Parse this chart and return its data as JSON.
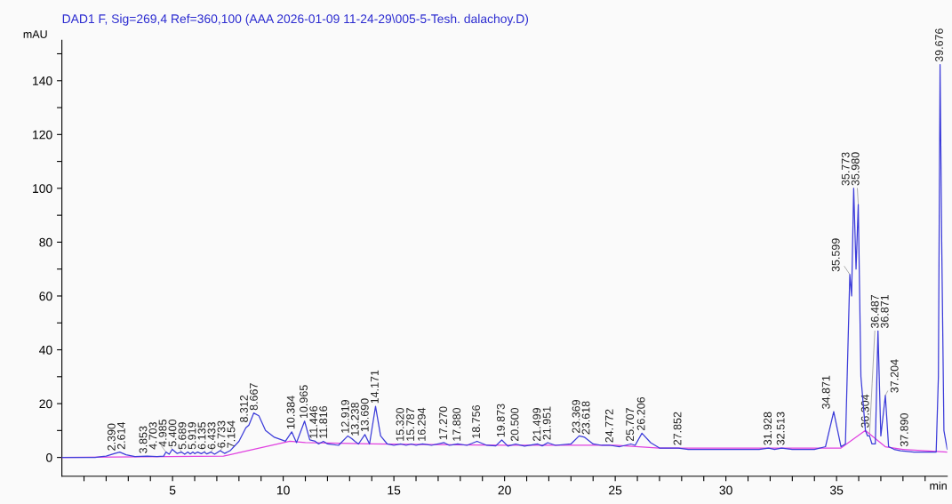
{
  "chart_data": {
    "type": "line",
    "title": "DAD1 F, Sig=269,4 Ref=360,100 (AAA 2026-01-09 11-24-29\\005-5-Tesh. dalachoy.D)",
    "xlabel": "min",
    "ylabel": "mAU",
    "xlim": [
      0,
      40
    ],
    "ylim": [
      -7,
      155
    ],
    "xticks": [
      {
        "value": 1,
        "label": null
      },
      {
        "value": 2,
        "label": null
      },
      {
        "value": 3,
        "label": null
      },
      {
        "value": 4,
        "label": null
      },
      5,
      {
        "value": 6,
        "label": null
      },
      {
        "value": 7,
        "label": null
      },
      {
        "value": 8,
        "label": null
      },
      {
        "value": 9,
        "label": null
      },
      10,
      {
        "value": 11,
        "label": null
      },
      {
        "value": 12,
        "label": null
      },
      {
        "value": 13,
        "label": null
      },
      {
        "value": 14,
        "label": null
      },
      15,
      {
        "value": 16,
        "label": null
      },
      {
        "value": 17,
        "label": null
      },
      {
        "value": 18,
        "label": null
      },
      {
        "value": 19,
        "label": null
      },
      20,
      {
        "value": 21,
        "label": null
      },
      {
        "value": 22,
        "label": null
      },
      {
        "value": 23,
        "label": null
      },
      {
        "value": 24,
        "label": null
      },
      25,
      {
        "value": 26,
        "label": null
      },
      {
        "value": 27,
        "label": null
      },
      {
        "value": 28,
        "label": null
      },
      {
        "value": 29,
        "label": null
      },
      30,
      {
        "value": 31,
        "label": null
      },
      {
        "value": 32,
        "label": null
      },
      {
        "value": 33,
        "label": null
      },
      {
        "value": 34,
        "label": null
      },
      35,
      {
        "value": 36,
        "label": null
      },
      {
        "value": 37,
        "label": null
      },
      {
        "value": 38,
        "label": null
      },
      {
        "value": 39,
        "label": null
      }
    ],
    "yticks": [
      0,
      {
        "value": 10,
        "label": null
      },
      20,
      {
        "value": 30,
        "label": null
      },
      40,
      {
        "value": 50,
        "label": null
      },
      60,
      {
        "value": 70,
        "label": null
      },
      80,
      {
        "value": 90,
        "label": null
      },
      100,
      {
        "value": 110,
        "label": null
      },
      120,
      {
        "value": 130,
        "label": null
      },
      140,
      {
        "value": 150,
        "label": null
      }
    ],
    "grid": false,
    "legend": false,
    "marker": "none",
    "line_style": "solid",
    "series": [
      {
        "color": "#3b3bd9",
        "x": [
          0,
          1.5,
          1.8,
          2.0,
          2.39,
          2.614,
          2.9,
          3.3,
          3.853,
          4.3,
          4.6,
          4.703,
          4.85,
          4.985,
          5.2,
          5.4,
          5.55,
          5.689,
          5.8,
          5.919,
          6.0,
          6.135,
          6.3,
          6.433,
          6.55,
          6.733,
          6.9,
          7.154,
          7.35,
          7.6,
          8.0,
          8.312,
          8.45,
          8.667,
          8.9,
          9.2,
          9.6,
          10.1,
          10.384,
          10.6,
          10.965,
          11.2,
          11.446,
          11.6,
          11.816,
          12.0,
          12.5,
          12.919,
          13.1,
          13.238,
          13.4,
          13.69,
          13.9,
          14.171,
          14.4,
          14.7,
          15.0,
          15.32,
          15.55,
          15.787,
          16.0,
          16.294,
          16.7,
          17.27,
          17.5,
          17.88,
          18.3,
          18.756,
          19.2,
          19.6,
          19.873,
          20.15,
          20.5,
          20.9,
          21.499,
          21.7,
          21.951,
          22.3,
          23.0,
          23.369,
          23.618,
          24.0,
          24.4,
          24.772,
          25.2,
          25.707,
          25.9,
          26.206,
          26.6,
          27.0,
          27.852,
          28.3,
          30,
          31.5,
          31.928,
          32.2,
          32.513,
          33.0,
          34.0,
          34.5,
          34.871,
          35.2,
          35.4,
          35.599,
          35.68,
          35.773,
          35.88,
          35.98,
          36.1,
          36.304,
          36.4,
          36.487,
          36.6,
          36.75,
          36.871,
          37.0,
          37.204,
          37.35,
          37.6,
          37.89,
          38.5,
          39.5,
          39.6,
          39.676,
          39.75,
          39.85,
          40
        ],
        "values": [
          0,
          0,
          0.3,
          0.5,
          1.5,
          2,
          1,
          0.3,
          0.5,
          0.3,
          0.5,
          2,
          1.2,
          3,
          1.5,
          2,
          1.2,
          2,
          1.3,
          2,
          1.4,
          2,
          1.4,
          2,
          1.3,
          2,
          1.2,
          2.5,
          1.5,
          2.5,
          6,
          11,
          12,
          16.5,
          15.5,
          10,
          7.5,
          6,
          9.5,
          5.5,
          13.5,
          6.5,
          6,
          5,
          6,
          5,
          4.5,
          8,
          7,
          6,
          5,
          8.5,
          5,
          19,
          8,
          5,
          4.5,
          5,
          4.5,
          5,
          4.5,
          5,
          4.5,
          5.5,
          4.5,
          5,
          4.5,
          6,
          4.5,
          4.3,
          6.5,
          4.2,
          5,
          4.2,
          5,
          4.3,
          5.5,
          4.5,
          5,
          8,
          7.5,
          5,
          4.5,
          4.5,
          4,
          5,
          4.5,
          9,
          5.5,
          3.5,
          3.5,
          3,
          3,
          3,
          3.5,
          3,
          3.5,
          3,
          3,
          4,
          17,
          4,
          5,
          68,
          60,
          100,
          70,
          94,
          30,
          10,
          8,
          8,
          5,
          5,
          47,
          8,
          23,
          4,
          3,
          2.5,
          2,
          2,
          30,
          146,
          80,
          10,
          3
        ]
      },
      {
        "color": "#e040e0",
        "x": [
          0,
          7.3,
          10.3,
          11,
          14,
          20,
          25,
          27,
          35.2,
          36.3,
          37.2,
          38,
          40
        ],
        "values": [
          0,
          0.5,
          6,
          5.5,
          5,
          4.5,
          4.5,
          3.5,
          3.5,
          10,
          4,
          3,
          2
        ]
      }
    ],
    "annotations": [
      {
        "text": "2.390",
        "x": 2.39,
        "y": 1.5
      },
      {
        "text": "2.614",
        "x": 2.614,
        "y": 2
      },
      {
        "text": "3.853",
        "x": 3.853,
        "y": 0.5
      },
      {
        "text": "4.703",
        "x": 4.703,
        "y": 2
      },
      {
        "text": "4.985",
        "x": 4.985,
        "y": 3
      },
      {
        "text": "5.400",
        "x": 5.4,
        "y": 2
      },
      {
        "text": "5.689",
        "x": 5.689,
        "y": 2
      },
      {
        "text": "5.919",
        "x": 5.919,
        "y": 2
      },
      {
        "text": "6.135",
        "x": 6.135,
        "y": 2
      },
      {
        "text": "6.433",
        "x": 6.433,
        "y": 2
      },
      {
        "text": "6.733",
        "x": 6.733,
        "y": 2
      },
      {
        "text": "7.154",
        "x": 7.154,
        "y": 2.5
      },
      {
        "text": "8.312",
        "x": 8.312,
        "y": 11
      },
      {
        "text": "8.667",
        "x": 8.667,
        "y": 16.5
      },
      {
        "text": "10.384",
        "x": 10.384,
        "y": 9.5
      },
      {
        "text": "10.965",
        "x": 10.965,
        "y": 13.5
      },
      {
        "text": "11.446",
        "x": 11.446,
        "y": 6
      },
      {
        "text": "11.816",
        "x": 11.816,
        "y": 6
      },
      {
        "text": "12.919",
        "x": 12.919,
        "y": 8
      },
      {
        "text": "13.238",
        "x": 13.238,
        "y": 6
      },
      {
        "text": "13.690",
        "x": 13.69,
        "y": 8.5
      },
      {
        "text": "14.171",
        "x": 14.171,
        "y": 19
      },
      {
        "text": "15.320",
        "x": 15.32,
        "y": 5
      },
      {
        "text": "15.787",
        "x": 15.787,
        "y": 5
      },
      {
        "text": "16.294",
        "x": 16.294,
        "y": 5
      },
      {
        "text": "17.270",
        "x": 17.27,
        "y": 5.5
      },
      {
        "text": "17.880",
        "x": 17.88,
        "y": 5
      },
      {
        "text": "18.756",
        "x": 18.756,
        "y": 6
      },
      {
        "text": "19.873",
        "x": 19.873,
        "y": 6.5
      },
      {
        "text": "20.500",
        "x": 20.5,
        "y": 5
      },
      {
        "text": "21.499",
        "x": 21.499,
        "y": 5
      },
      {
        "text": "21.951",
        "x": 21.951,
        "y": 5.5
      },
      {
        "text": "23.369",
        "x": 23.369,
        "y": 8
      },
      {
        "text": "23.618",
        "x": 23.618,
        "y": 7.5
      },
      {
        "text": "24.772",
        "x": 24.772,
        "y": 4.5
      },
      {
        "text": "25.707",
        "x": 25.707,
        "y": 5
      },
      {
        "text": "26.206",
        "x": 26.206,
        "y": 9
      },
      {
        "text": "27.852",
        "x": 27.852,
        "y": 3.5
      },
      {
        "text": "31.928",
        "x": 31.928,
        "y": 3.5
      },
      {
        "text": "32.513",
        "x": 32.513,
        "y": 3.5
      },
      {
        "text": "34.871",
        "x": 34.871,
        "y": 17
      },
      {
        "text": "35.599",
        "x": 35.599,
        "y": 68
      },
      {
        "text": "35.773",
        "x": 35.773,
        "y": 100
      },
      {
        "text": "35.980",
        "x": 35.98,
        "y": 94
      },
      {
        "text": "36.304",
        "x": 36.304,
        "y": 10
      },
      {
        "text": "36.487",
        "x": 36.487,
        "y": 8
      },
      {
        "text": "36.871",
        "x": 36.871,
        "y": 47
      },
      {
        "text": "37.204",
        "x": 37.204,
        "y": 23
      },
      {
        "text": "37.890",
        "x": 37.89,
        "y": 2.5
      },
      {
        "text": "39.676",
        "x": 39.676,
        "y": 146
      }
    ]
  }
}
